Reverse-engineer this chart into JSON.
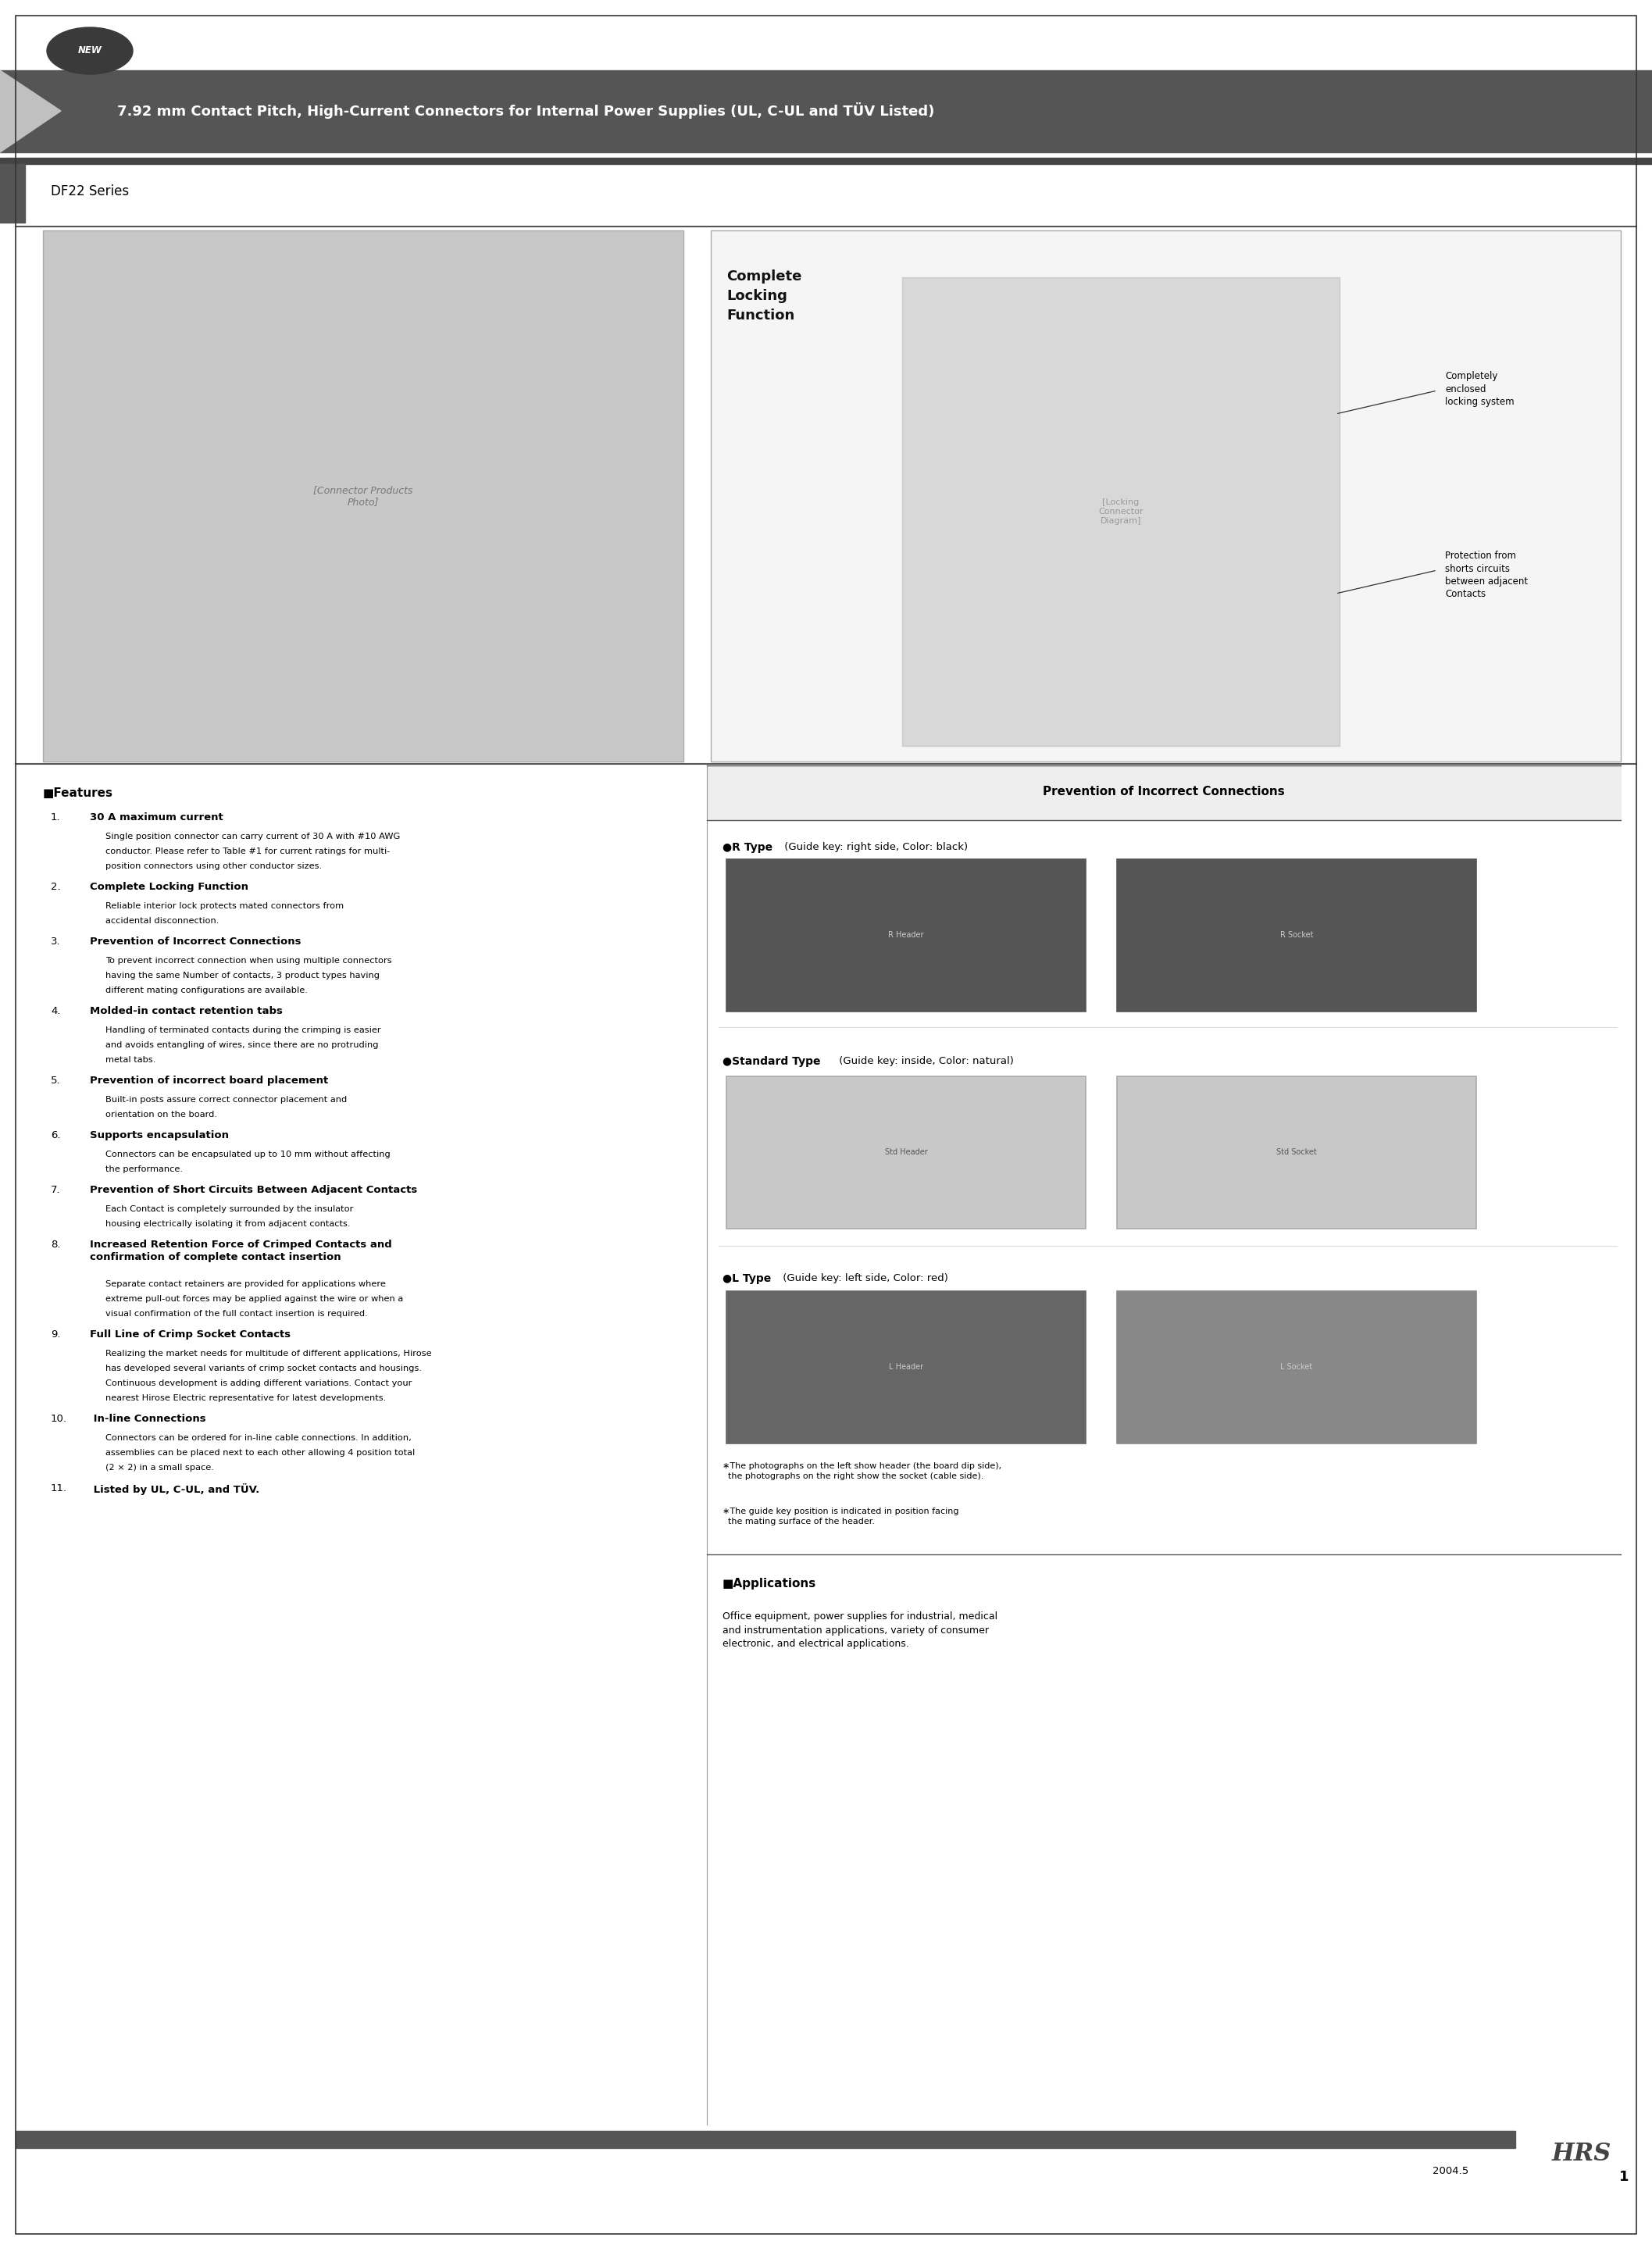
{
  "page_width": 21.15,
  "page_height": 28.78,
  "bg_color": "#ffffff",
  "title_text": "7.92 mm Contact Pitch, High-Current Connectors for Internal Power Supplies (UL, C-UL and TÜV Listed)",
  "series_text": "DF22 Series",
  "footer_year": "2004.5",
  "footer_page": "1",
  "features_title": "■Features",
  "features": [
    {
      "num": "1.",
      "title": "30 A maximum current",
      "body": "Single position connector can carry current of 30 A with #10 AWG\nconductor. Please refer to Table #1 for current ratings for multi-\nposition connectors using other conductor sizes."
    },
    {
      "num": "2.",
      "title": "Complete Locking Function",
      "body": "Reliable interior lock protects mated connectors from\naccidental disconnection."
    },
    {
      "num": "3.",
      "title": "Prevention of Incorrect Connections",
      "body": "To prevent incorrect connection when using multiple connectors\nhaving the same Number of contacts, 3 product types having\ndifferent mating configurations are available."
    },
    {
      "num": "4.",
      "title": "Molded-in contact retention tabs",
      "body": "Handling of terminated contacts during the crimping is easier\nand avoids entangling of wires, since there are no protruding\nmetal tabs."
    },
    {
      "num": "5.",
      "title": "Prevention of incorrect board placement",
      "body": "Built-in posts assure correct connector placement and\norientation on the board."
    },
    {
      "num": "6.",
      "title": "Supports encapsulation",
      "body": "Connectors can be encapsulated up to 10 mm without affecting\nthe performance."
    },
    {
      "num": "7.",
      "title": "Prevention of Short Circuits Between Adjacent Contacts",
      "body": "Each Contact is completely surrounded by the insulator\nhousing electrically isolating it from adjacent contacts."
    },
    {
      "num": "8.",
      "title": "Increased Retention Force of Crimped Contacts and\nconfirmation of complete contact insertion",
      "body": "Separate contact retainers are provided for applications where\nextreme pull-out forces may be applied against the wire or when a\nvisual confirmation of the full contact insertion is required."
    },
    {
      "num": "9.",
      "title": "Full Line of Crimp Socket Contacts",
      "body": "Realizing the market needs for multitude of different applications, Hirose\nhas developed several variants of crimp socket contacts and housings.\nContinuous development is adding different variations. Contact your\nnearest Hirose Electric representative for latest developments."
    },
    {
      "num": "10.",
      "title": " In-line Connections",
      "body": "Connectors can be ordered for in-line cable connections. In addition,\nassemblies can be placed next to each other allowing 4 position total\n(2 × 2) in a small space."
    },
    {
      "num": "11.",
      "title": " Listed by UL, C-UL, and TÜV.",
      "body": ""
    }
  ],
  "right_panel_title": "Prevention of Incorrect Connections",
  "r_type_label": "●R Type",
  "r_type_desc": " (Guide key: right side, Color: black)",
  "std_type_label": "●Standard Type",
  "std_type_desc": " (Guide key: inside, Color: natural)",
  "l_type_label": "●L Type",
  "l_type_desc": " (Guide key: left side, Color: red)",
  "photo_note1": "∗The photographs on the left show header (the board dip side),\n  the photographs on the right show the socket (cable side).",
  "photo_note2": "∗The guide key position is indicated in position facing\n  the mating surface of the header.",
  "applications_title": "■Applications",
  "applications_body": "Office equipment, power supplies for industrial, medical\nand instrumentation applications, variety of consumer\nelectronic, and electrical applications.",
  "complete_locking_title": "Complete\nLocking\nFunction",
  "locking_note1": "Completely\nenclosed\nlocking system",
  "locking_note2": "Protection from\nshorts circuits\nbetween adjacent\nContacts"
}
